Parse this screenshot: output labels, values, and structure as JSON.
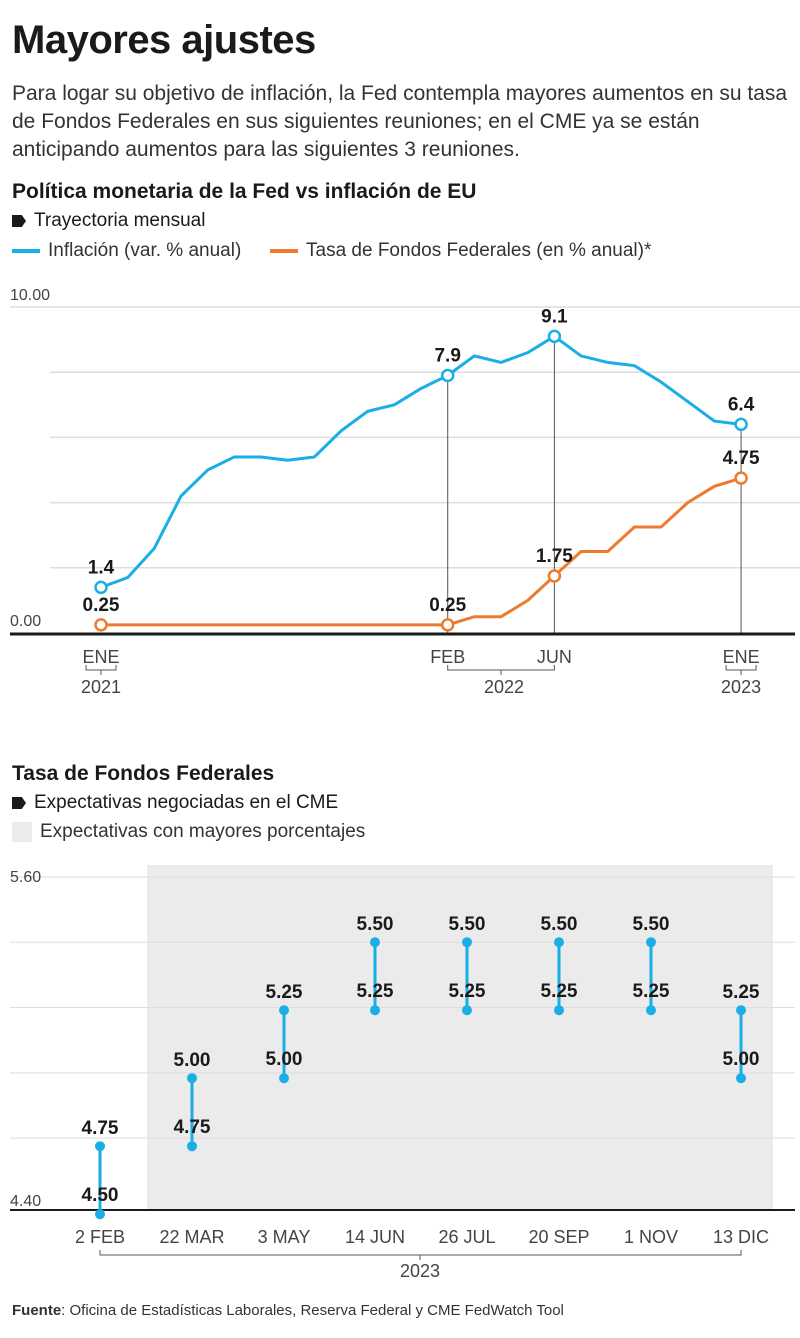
{
  "title": "Mayores ajustes",
  "subtitle": "Para logar su objetivo de inflación, la Fed contempla mayores aumentos en su tasa de Fondos Federales en sus siguientes reuniones; en el CME ya se están anticipando aumentos para las siguientes 3 reuniones.",
  "footer": {
    "label": "Fuente",
    "text": ": Oficina de Estadísticas Laborales, Reserva Federal y CME FedWatch Tool"
  },
  "colors": {
    "inflation": "#1aaee6",
    "rate": "#ee7a2e",
    "shade": "#ebebeb"
  },
  "chart_data": [
    {
      "type": "line",
      "title": "Política monetaria de la Fed vs inflación de EU",
      "subtitle": "Trayectoria mensual",
      "ylim": [
        0,
        10
      ],
      "ytick_labels": [
        "0.00",
        "10.00"
      ],
      "x_labels": [
        {
          "month": "ENE",
          "year": "2021",
          "index": 0
        },
        {
          "month": "FEB",
          "index": 13
        },
        {
          "month": "JUN",
          "index": 17
        },
        {
          "year": "2022"
        },
        {
          "month": "ENE",
          "year": "2023",
          "index": 24
        }
      ],
      "series": [
        {
          "name": "Inflación (var. % anual)",
          "color": "#1aaee6",
          "values": [
            1.4,
            1.7,
            2.6,
            4.2,
            5.0,
            5.4,
            5.4,
            5.3,
            5.4,
            6.2,
            6.8,
            7.0,
            7.5,
            7.9,
            8.5,
            8.3,
            8.6,
            9.1,
            8.5,
            8.3,
            8.2,
            7.7,
            7.1,
            6.5,
            6.4
          ],
          "labels": [
            {
              "index": 0,
              "text": "1.4"
            },
            {
              "index": 13,
              "text": "7.9"
            },
            {
              "index": 17,
              "text": "9.1"
            },
            {
              "index": 24,
              "text": "6.4"
            }
          ]
        },
        {
          "name": "Tasa de Fondos Federales (en % anual)*",
          "color": "#ee7a2e",
          "values": [
            0.25,
            0.25,
            0.25,
            0.25,
            0.25,
            0.25,
            0.25,
            0.25,
            0.25,
            0.25,
            0.25,
            0.25,
            0.25,
            0.25,
            0.5,
            0.5,
            1.0,
            1.75,
            2.5,
            2.5,
            3.25,
            3.25,
            4.0,
            4.5,
            4.75
          ],
          "labels": [
            {
              "index": 0,
              "text": "0.25"
            },
            {
              "index": 13,
              "text": "0.25"
            },
            {
              "index": 17,
              "text": "1.75"
            },
            {
              "index": 24,
              "text": "4.75"
            }
          ]
        }
      ]
    },
    {
      "type": "range",
      "title": "Tasa de Fondos Federales",
      "subtitle": "Expectativas negociadas en el CME",
      "shade_label": "Expectativas con mayores porcentajes",
      "ylim": [
        4.4,
        5.6
      ],
      "ytick_labels": [
        "4.40",
        "5.60"
      ],
      "xlabel": "2023",
      "categories": [
        "2 FEB",
        "22 MAR",
        "3 MAY",
        "14 JUN",
        "26 JUL",
        "20 SEP",
        "1 NOV",
        "13 DIC"
      ],
      "low": [
        4.5,
        4.75,
        5.0,
        5.25,
        5.25,
        5.25,
        5.25,
        5.0
      ],
      "high": [
        4.75,
        5.0,
        5.25,
        5.5,
        5.5,
        5.5,
        5.5,
        5.25
      ],
      "low_labels": [
        "4.50",
        "4.75",
        "5.00",
        "5.25",
        "5.25",
        "5.25",
        "5.25",
        "5.00"
      ],
      "high_labels": [
        "4.75",
        "5.00",
        "5.25",
        "5.50",
        "5.50",
        "5.50",
        "5.50",
        "5.25"
      ],
      "shaded_from": "22 MAR"
    }
  ]
}
